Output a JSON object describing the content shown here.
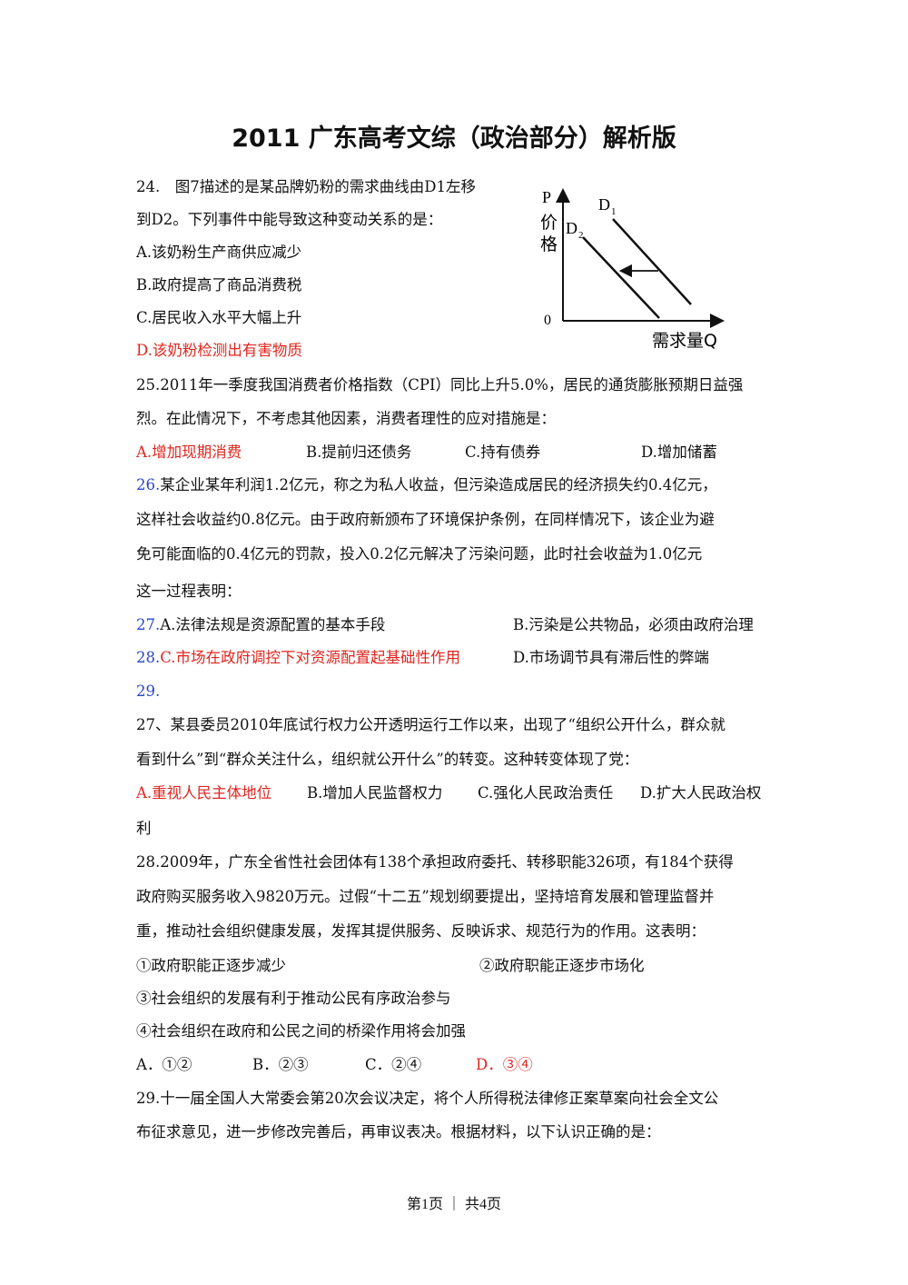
{
  "title": "2011 广东高考文综（政治部分）解析版",
  "q24": {
    "line1": "24.　图7描述的是某品牌奶粉的需求曲线由D1左移",
    "line2": "到D2。下列事件中能导致这种变动关系的是：",
    "opt_a": "A.该奶粉生产商供应减少",
    "opt_b": "B.政府提高了商品消费税",
    "opt_c": "C.居民收入水平大幅上升",
    "opt_d": "D.该奶粉检测出有害物质",
    "figure": {
      "p": "P",
      "y_label_1": "价",
      "y_label_2": "格",
      "origin": "0",
      "d1": "D",
      "d1_sub": "1",
      "d2": "D",
      "d2_sub": "2",
      "x_label": "需求量Q"
    }
  },
  "q25": {
    "line1": "25.2011年一季度我国消费者价格指数（CPI）同比上升5.0%，居民的通货膨胀预期日益强",
    "line2": "烈。在此情况下，不考虑其他因素，消费者理性的应对措施是：",
    "opt_a": "A.增加现期消费",
    "opt_b": "B.提前归还债务",
    "opt_c": "C.持有债券",
    "opt_d": "D.增加储蓄"
  },
  "q26": {
    "num": "26.",
    "line1": "某企业某年利润1.2亿元，称之为私人收益，但污染造成居民的经济损失约0.4亿元，",
    "line2": "这样社会收益约0.8亿元。由于政府新颁布了环境保护条例，在同样情况下，该企业为避",
    "line3": "免可能面临的0.4亿元的罚款，投入0.2亿元解决了污染问题，此时社会收益为1.0亿元",
    "line4": "这一过程表明：",
    "num27": "27.",
    "opt_a": "A.法律法规是资源配置的基本手段",
    "opt_b": "B.污染是公共物品，必须由政府治理",
    "num28": "28.",
    "opt_c": "C.市场在政府调控下对资源配置起基础性作用",
    "opt_d": "D.市场调节具有滞后性的弊端",
    "num29": "29."
  },
  "q27": {
    "line1": "27、某县委员2010年底试行权力公开透明运行工作以来，出现了“组织公开什么，群众就",
    "line2": "看到什么”到“群众关注什么，组织就公开什么”的转变。这种转变体现了党：",
    "opt_a": "A.重视人民主体地位",
    "opt_b": "B.增加人民监督权力",
    "opt_c": "C.强化人民政治责任",
    "opt_d": "D.扩大人民政治权",
    "opt_d_cont": "利"
  },
  "q28": {
    "line1": "28.2009年，广东全省性社会团体有138个承担政府委托、转移职能326项，有184个获得",
    "line2": "政府购买服务收入9820万元。过假“十二五”规划纲要提出，坚持培育发展和管理监督并",
    "line3": "重，推动社会组织健康发展，发挥其提供服务、反映诉求、规范行为的作用。这表明：",
    "item1": "①政府职能正逐步减少",
    "item2": "②政府职能正逐步市场化",
    "item3": "③社会组织的发展有利于推动公民有序政治参与",
    "item4": "④社会组织在政府和公民之间的桥梁作用将会加强",
    "opt_a": "A．①②",
    "opt_b": "B．②③",
    "opt_c": "C．②④",
    "opt_d": "D．③④"
  },
  "q29": {
    "line1": "29.十一届全国人大常委会第20次会议决定，将个人所得税法律修正案草案向社会全文公",
    "line2": "布征求意见，进一步修改完善后，再审议表决。根据材料，以下认识正确的是："
  },
  "footer": "第1页 ｜ 共4页"
}
